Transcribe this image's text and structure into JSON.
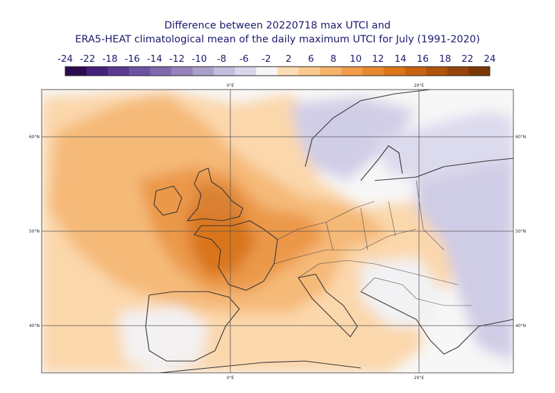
{
  "title": {
    "line1": "Difference between 20220718 max UTCI and",
    "line2": "ERA5-HEAT climatological mean of the daily maximum UTCI for July (1991-2020)"
  },
  "colorbar": {
    "labels": [
      "-24",
      "-22",
      "-18",
      "-16",
      "-14",
      "-12",
      "-10",
      "-8",
      "-6",
      "-2",
      "2",
      "6",
      "8",
      "10",
      "12",
      "14",
      "16",
      "18",
      "22",
      "24"
    ],
    "colors": [
      "#2d0a50",
      "#46207a",
      "#5a3a8f",
      "#6d52a3",
      "#8069af",
      "#9683bd",
      "#aba0cc",
      "#c3bedd",
      "#d8d7ea",
      "#f6f6f6",
      "#fddcb2",
      "#fbc88d",
      "#f7b26a",
      "#f19d4c",
      "#e78830",
      "#dc7518",
      "#c86311",
      "#b0540c",
      "#97450a",
      "#7b3807"
    ]
  },
  "map": {
    "lon_labels": [
      "0°E",
      "20°E"
    ],
    "lat_labels": [
      "60°N",
      "50°N",
      "40°N"
    ]
  }
}
